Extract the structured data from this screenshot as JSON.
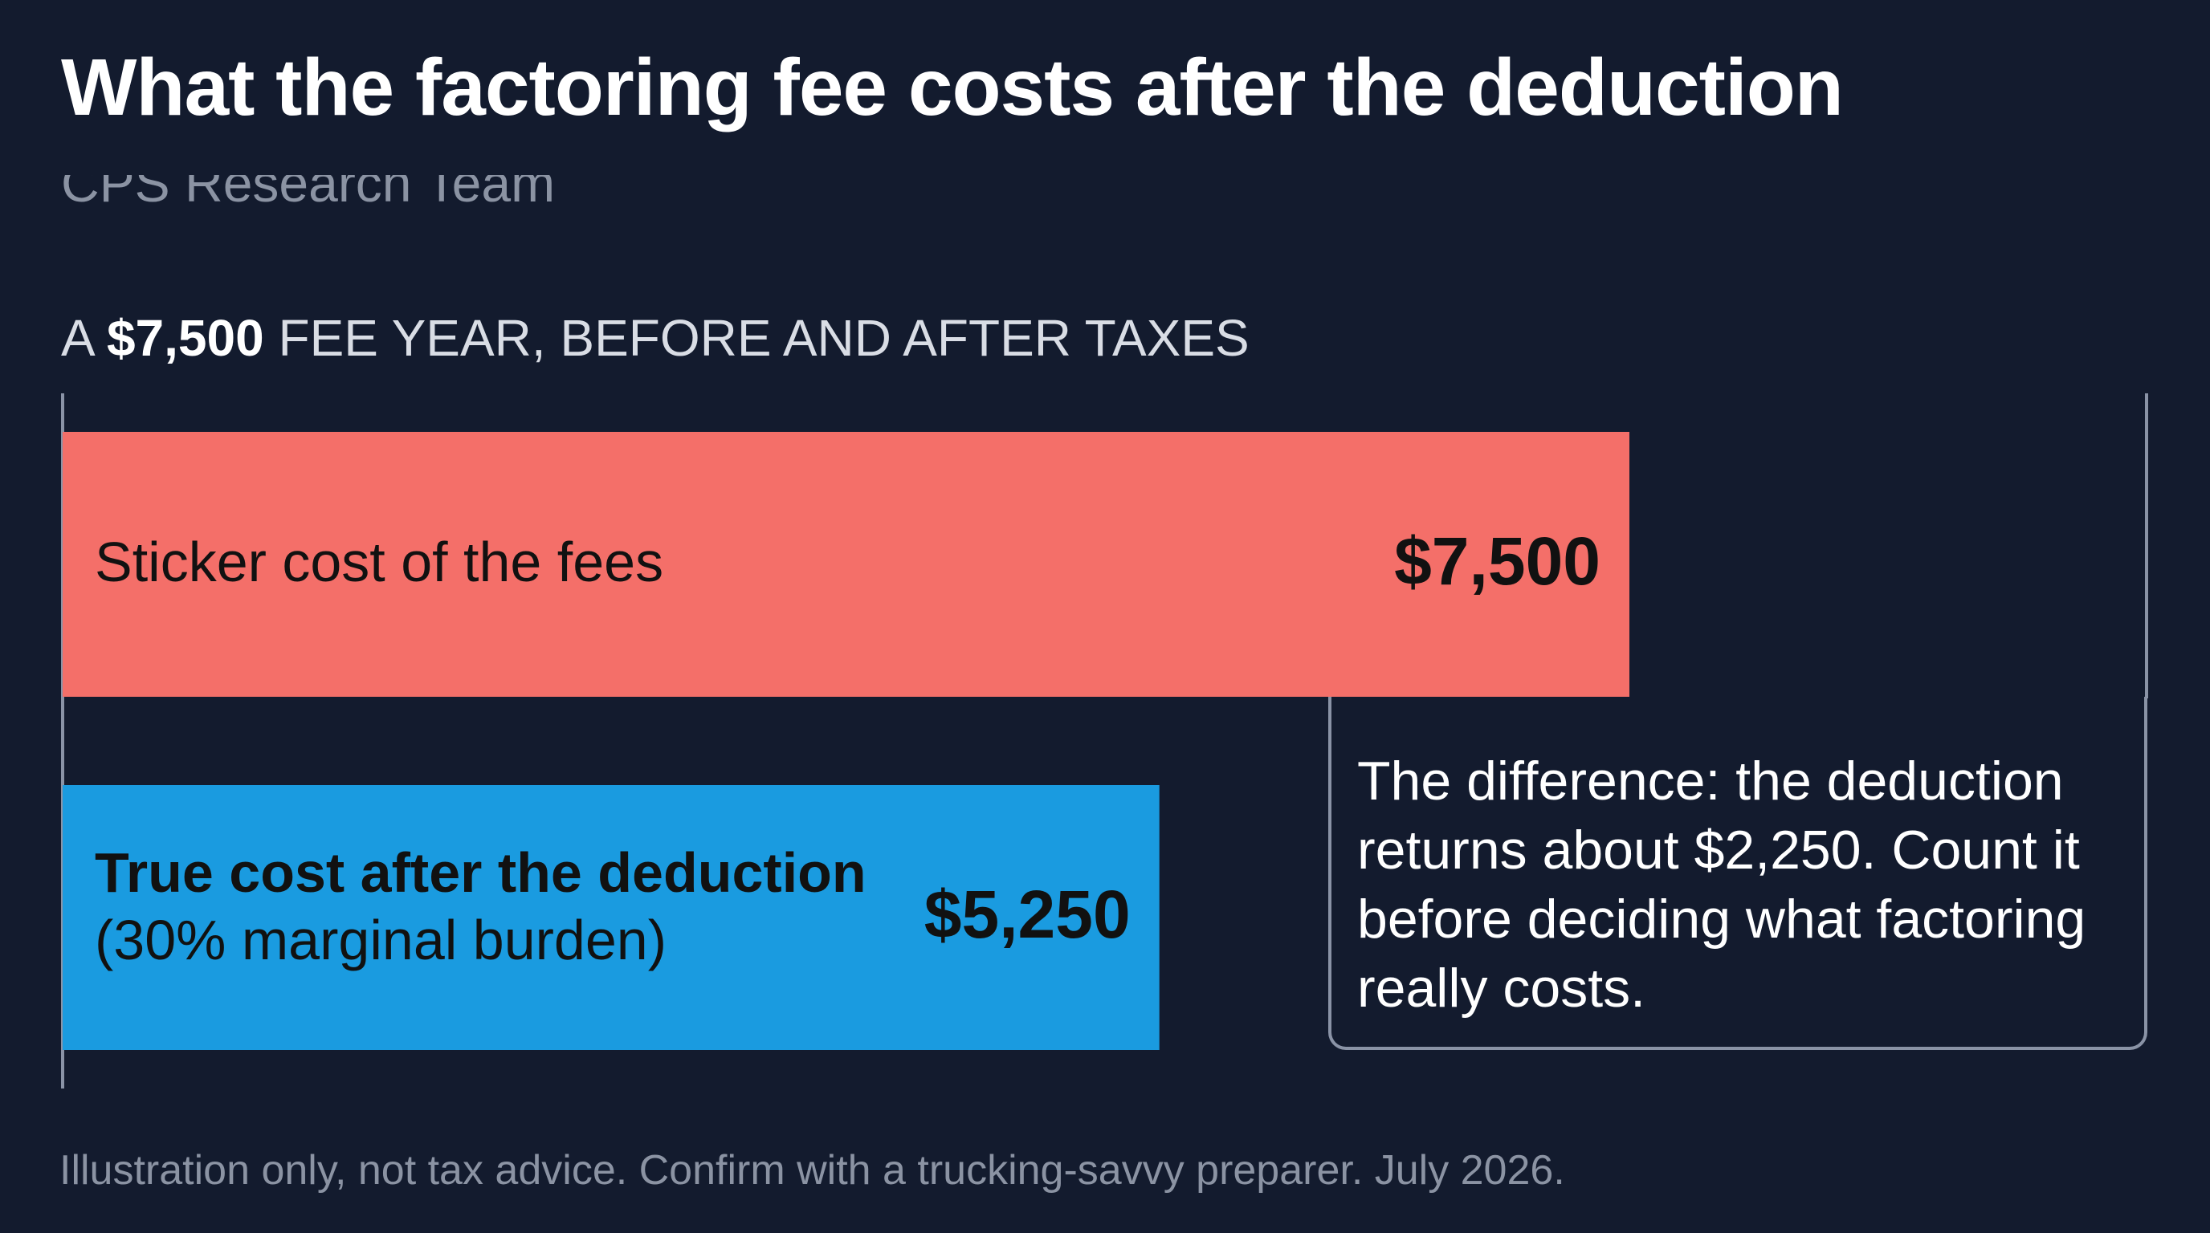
{
  "header": {
    "title": "What the factoring fee costs after the deduction",
    "byline": "CPS Research Team",
    "subtitle_pre": "A ",
    "subtitle_bold": "$7,500",
    "subtitle_post": " FEE YEAR, BEFORE AND AFTER TAXES"
  },
  "chart_data": {
    "type": "bar",
    "orientation": "horizontal",
    "categories": [
      "Sticker cost of the fees",
      "True cost after the deduction"
    ],
    "category_sublabels": [
      "",
      "(30% marginal burden)"
    ],
    "values": [
      7500,
      5250
    ],
    "value_labels": [
      "$7,500",
      "$5,250"
    ],
    "colors": [
      "#f46f69",
      "#1a9be0"
    ],
    "label_weights": [
      "normal",
      "bold"
    ],
    "grid": false,
    "legend": "none"
  },
  "callout": {
    "text": "The difference: the deduction returns about $2,250. Count it before deciding what factoring really costs."
  },
  "footnote": "Illustration only, not tax advice. Confirm with a trucking-savvy preparer. July 2026.",
  "colors": {
    "background": "#131b2e",
    "axis": "#8a93a6",
    "bar_text": "#111111"
  }
}
